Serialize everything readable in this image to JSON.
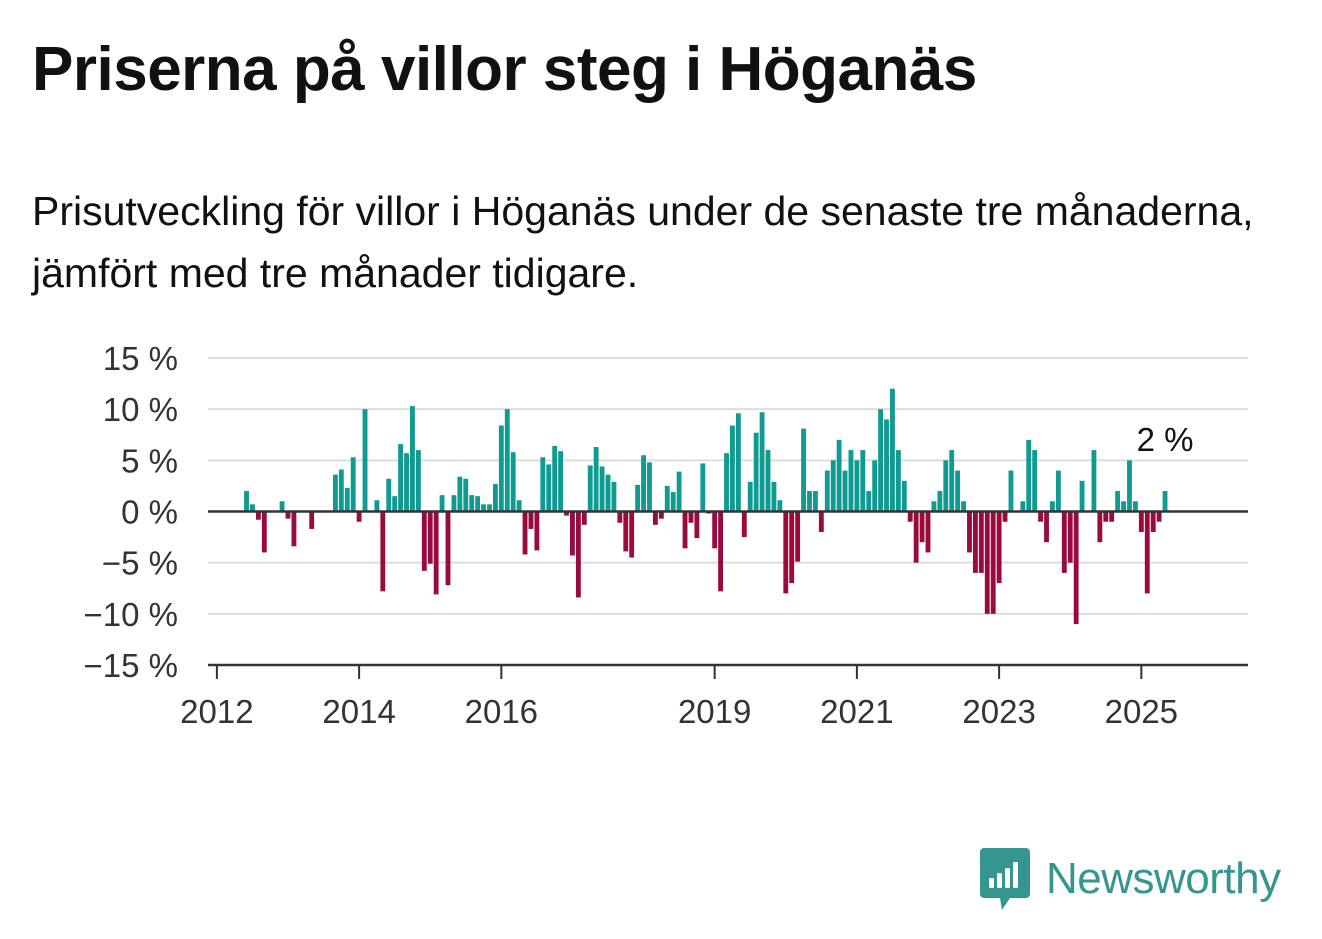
{
  "header": {
    "title": "Priserna på villor steg i Höganäs",
    "subtitle": "Prisutveckling för villor i Höganäs under de senaste tre månaderna, jämfört med tre månader tidigare."
  },
  "brand": {
    "name": "Newsworthy",
    "icon": "bar-chart-speech-bubble-icon",
    "color": "#35968f"
  },
  "colors": {
    "positive": "#0f9b91",
    "negative": "#990a3f",
    "grid": "#dddddd",
    "axis": "#333333"
  },
  "chart_data": {
    "type": "bar",
    "ylim": [
      -15,
      15
    ],
    "y_ticks": [
      {
        "value": 15,
        "label": "15 %"
      },
      {
        "value": 10,
        "label": "10 %"
      },
      {
        "value": 5,
        "label": "5 %"
      },
      {
        "value": 0,
        "label": "0 %"
      },
      {
        "value": -5,
        "label": "−5 %"
      },
      {
        "value": -10,
        "label": "−10 %"
      },
      {
        "value": -15,
        "label": "−15 %"
      }
    ],
    "x_ticks": [
      "2012",
      "2014",
      "2016",
      "2019",
      "2021",
      "2023",
      "2025"
    ],
    "grid": true,
    "last_label": "2 %",
    "x": [
      "2012-06",
      "2012-07",
      "2012-08",
      "2012-09",
      "2012-10",
      "2012-11",
      "2012-12",
      "2013-01",
      "2013-02",
      "2013-03",
      "2013-04",
      "2013-05",
      "2013-06",
      "2013-07",
      "2013-08",
      "2013-09",
      "2013-10",
      "2013-11",
      "2013-12",
      "2014-01",
      "2014-02",
      "2014-03",
      "2014-04",
      "2014-05",
      "2014-06",
      "2014-07",
      "2014-08",
      "2014-09",
      "2014-10",
      "2014-11",
      "2014-12",
      "2015-01",
      "2015-02",
      "2015-03",
      "2015-04",
      "2015-05",
      "2015-06",
      "2015-07",
      "2015-08",
      "2015-09",
      "2015-10",
      "2015-11",
      "2015-12",
      "2016-01",
      "2016-02",
      "2016-03",
      "2016-04",
      "2016-05",
      "2016-06",
      "2016-07",
      "2016-08",
      "2016-09",
      "2016-10",
      "2016-11",
      "2016-12",
      "2017-01",
      "2017-02",
      "2017-03",
      "2017-04",
      "2017-05",
      "2017-06",
      "2017-07",
      "2017-08",
      "2017-09",
      "2017-10",
      "2017-11",
      "2017-12",
      "2018-01",
      "2018-02",
      "2018-03",
      "2018-04",
      "2018-05",
      "2018-06",
      "2018-07",
      "2018-08",
      "2018-09",
      "2018-10",
      "2018-11",
      "2018-12",
      "2019-01",
      "2019-02",
      "2019-03",
      "2019-04",
      "2019-05",
      "2019-06",
      "2019-07",
      "2019-08",
      "2019-09",
      "2019-10",
      "2019-11",
      "2019-12",
      "2020-01",
      "2020-02",
      "2020-03",
      "2020-04",
      "2020-05",
      "2020-06",
      "2020-07",
      "2020-08",
      "2020-09",
      "2020-10",
      "2020-11",
      "2020-12",
      "2021-01",
      "2021-02",
      "2021-03",
      "2021-04",
      "2021-05",
      "2021-06",
      "2021-07",
      "2021-08",
      "2021-09",
      "2021-10",
      "2021-11",
      "2021-12",
      "2022-01",
      "2022-02",
      "2022-03",
      "2022-04",
      "2022-05",
      "2022-06",
      "2022-07",
      "2022-08",
      "2022-09",
      "2022-10",
      "2022-11",
      "2022-12",
      "2023-01",
      "2023-02",
      "2023-03",
      "2023-04",
      "2023-05",
      "2023-06",
      "2023-07",
      "2023-08",
      "2023-09",
      "2023-10",
      "2023-11",
      "2023-12",
      "2024-01",
      "2024-02",
      "2024-03",
      "2024-04",
      "2024-05",
      "2024-06",
      "2024-07",
      "2024-08",
      "2024-09",
      "2024-10",
      "2024-11",
      "2024-12",
      "2025-01",
      "2025-02",
      "2025-03",
      "2025-04",
      "2025-05"
    ],
    "values": [
      2,
      0.7,
      -0.8,
      -4,
      0,
      0,
      1,
      -0.7,
      -3.4,
      0,
      0,
      -1.7,
      0,
      0,
      0,
      3.6,
      4.1,
      2.3,
      5.3,
      -1,
      10,
      0,
      1.1,
      -7.8,
      3.2,
      1.5,
      6.6,
      5.7,
      10.3,
      6,
      -5.8,
      -5.1,
      -8.1,
      1.6,
      -7.2,
      1.6,
      3.4,
      3.2,
      1.6,
      1.5,
      0.7,
      0.7,
      2.7,
      8.4,
      10,
      5.8,
      1.1,
      -4.2,
      -1.7,
      -3.8,
      5.3,
      4.6,
      6.4,
      5.9,
      -0.4,
      -4.3,
      -8.4,
      -1.3,
      4.5,
      6.3,
      4.4,
      3.6,
      2.9,
      -1.1,
      -3.9,
      -4.5,
      2.6,
      5.5,
      4.8,
      -1.3,
      -0.7,
      2.5,
      1.9,
      3.9,
      -3.6,
      -1.1,
      -2.6,
      4.7,
      -0.2,
      -3.6,
      -7.8,
      5.7,
      8.4,
      9.6,
      -2.5,
      2.9,
      7.7,
      9.7,
      6,
      2.9,
      1.1,
      -8,
      -7,
      -4.9,
      8.1,
      2,
      2,
      -2,
      4,
      5,
      7,
      4,
      6,
      5,
      6,
      2,
      5,
      10,
      9,
      12,
      6,
      3,
      -1,
      -5,
      -3,
      -4,
      1,
      2,
      5,
      6,
      4,
      1,
      -4,
      -6,
      -6,
      -10,
      -10,
      -7,
      -1,
      4,
      0,
      1,
      7,
      6,
      -1,
      -3,
      1,
      4,
      -6,
      -5,
      -11,
      3,
      0,
      6,
      -3,
      -1,
      -1,
      2,
      1,
      5,
      1,
      -2,
      -8,
      -2,
      -1,
      2
    ]
  }
}
